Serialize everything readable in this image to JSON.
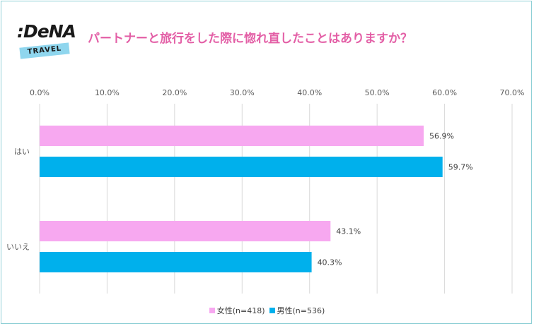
{
  "brand": {
    "logo_text": ":DeNA",
    "logo_sub": "TRAVEL"
  },
  "chart_data": {
    "type": "bar",
    "orientation": "horizontal",
    "title": "パートナーと旅行をした際に惚れ直したことはありますか？",
    "categories": [
      "はい",
      "いいえ"
    ],
    "series": [
      {
        "name": "女性(n=418)",
        "color": "#f7a8f0",
        "values": [
          56.9,
          43.1
        ]
      },
      {
        "name": "男性(n=536)",
        "color": "#00b0ec",
        "values": [
          59.7,
          40.3
        ]
      }
    ],
    "data_labels": [
      [
        "56.9%",
        "59.7%"
      ],
      [
        "43.1%",
        "40.3%"
      ]
    ],
    "xlim": [
      0,
      70
    ],
    "xticks": [
      0,
      10,
      20,
      30,
      40,
      50,
      60,
      70
    ],
    "xtick_labels": [
      "0.0%",
      "10.0%",
      "20.0%",
      "30.0%",
      "40.0%",
      "50.0%",
      "60.0%",
      "70.0%"
    ],
    "axis_position": "top",
    "grid": true,
    "legend": "bottom"
  }
}
